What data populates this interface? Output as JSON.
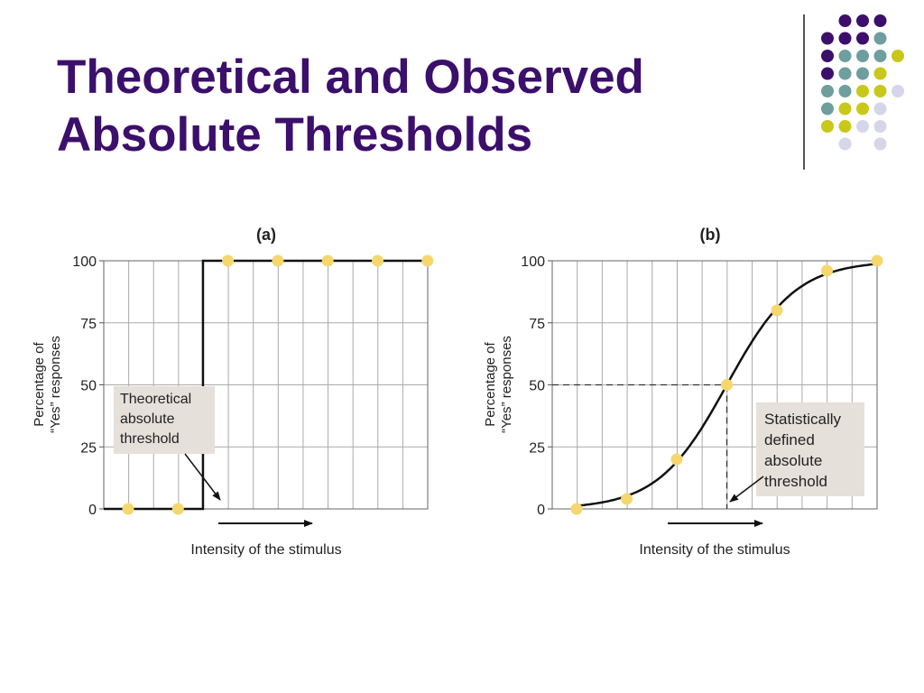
{
  "slide": {
    "title_line1": "Theoretical and Observed",
    "title_line2": "Absolute Thresholds"
  },
  "colors": {
    "title": "#3b0f6b",
    "dot_point": "#f5d76e",
    "callout_bg": "#e6e0da",
    "deco_purple": "#3b0f6b",
    "deco_teal": "#6e9e9e",
    "deco_olive": "#c8c81a",
    "deco_lavender": "#d6d6ea"
  },
  "chart_data": [
    {
      "type": "line",
      "title": "(a)",
      "xlabel": "Intensity of the stimulus",
      "ylabel_line1": "Percentage of",
      "ylabel_line2": "“Yes” responses",
      "yticks": [
        0,
        25,
        50,
        75,
        100
      ],
      "ylim": [
        0,
        100
      ],
      "grid": true,
      "series": [
        {
          "values_x": [
            1,
            2,
            3,
            4,
            5,
            6,
            7
          ],
          "values_y": [
            0,
            0,
            100,
            100,
            100,
            100,
            100
          ]
        }
      ],
      "step_at_x": 2.5,
      "annotation": {
        "lines": [
          "Theoretical",
          "absolute",
          "threshold"
        ]
      }
    },
    {
      "type": "line",
      "title": "(b)",
      "xlabel": "Intensity of the stimulus",
      "ylabel_line1": "Percentage of",
      "ylabel_line2": "“Yes” responses",
      "yticks": [
        0,
        25,
        50,
        75,
        100
      ],
      "ylim": [
        0,
        100
      ],
      "grid": true,
      "series": [
        {
          "values_x": [
            1,
            2,
            3,
            4,
            5,
            6,
            7
          ],
          "values_y": [
            0,
            4,
            20,
            50,
            80,
            96,
            100
          ]
        }
      ],
      "threshold": {
        "x": 4,
        "y": 50
      },
      "annotation": {
        "lines": [
          "Statistically",
          "defined",
          "absolute",
          "threshold"
        ]
      }
    }
  ]
}
